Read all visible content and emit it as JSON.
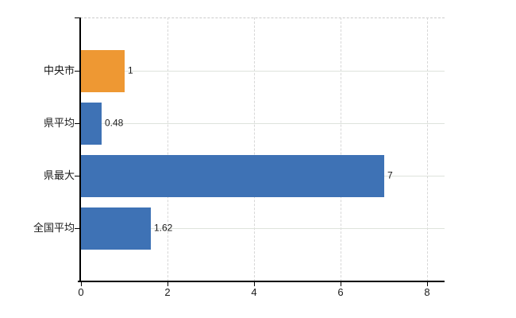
{
  "chart_data": {
    "type": "bar",
    "orientation": "horizontal",
    "title": "",
    "xlabel": "",
    "ylabel": "",
    "categories": [
      "中央市",
      "県平均",
      "県最大",
      "全国平均"
    ],
    "values": [
      1,
      0.48,
      7,
      1.62
    ],
    "value_labels": [
      "1",
      "0.48",
      "7",
      "1.62"
    ],
    "bar_colors": [
      "#ee9833",
      "#3e72b5",
      "#3e72b5",
      "#3e72b5"
    ],
    "xlim": [
      0,
      8.4
    ],
    "xticks": [
      0,
      2,
      4,
      6,
      8
    ],
    "xtick_labels": [
      "0",
      "2",
      "4",
      "6",
      "8"
    ],
    "grid": true,
    "legend": "none",
    "colors": {
      "highlight_bar": "#ee9833",
      "default_bar": "#3e72b5",
      "axis": "#000000",
      "h_gridline": "#dee3dc",
      "v_gridline": "#d7d7d7",
      "top_border": "#cccccc",
      "text": "#1a1a1a",
      "background": "#ffffff"
    }
  }
}
